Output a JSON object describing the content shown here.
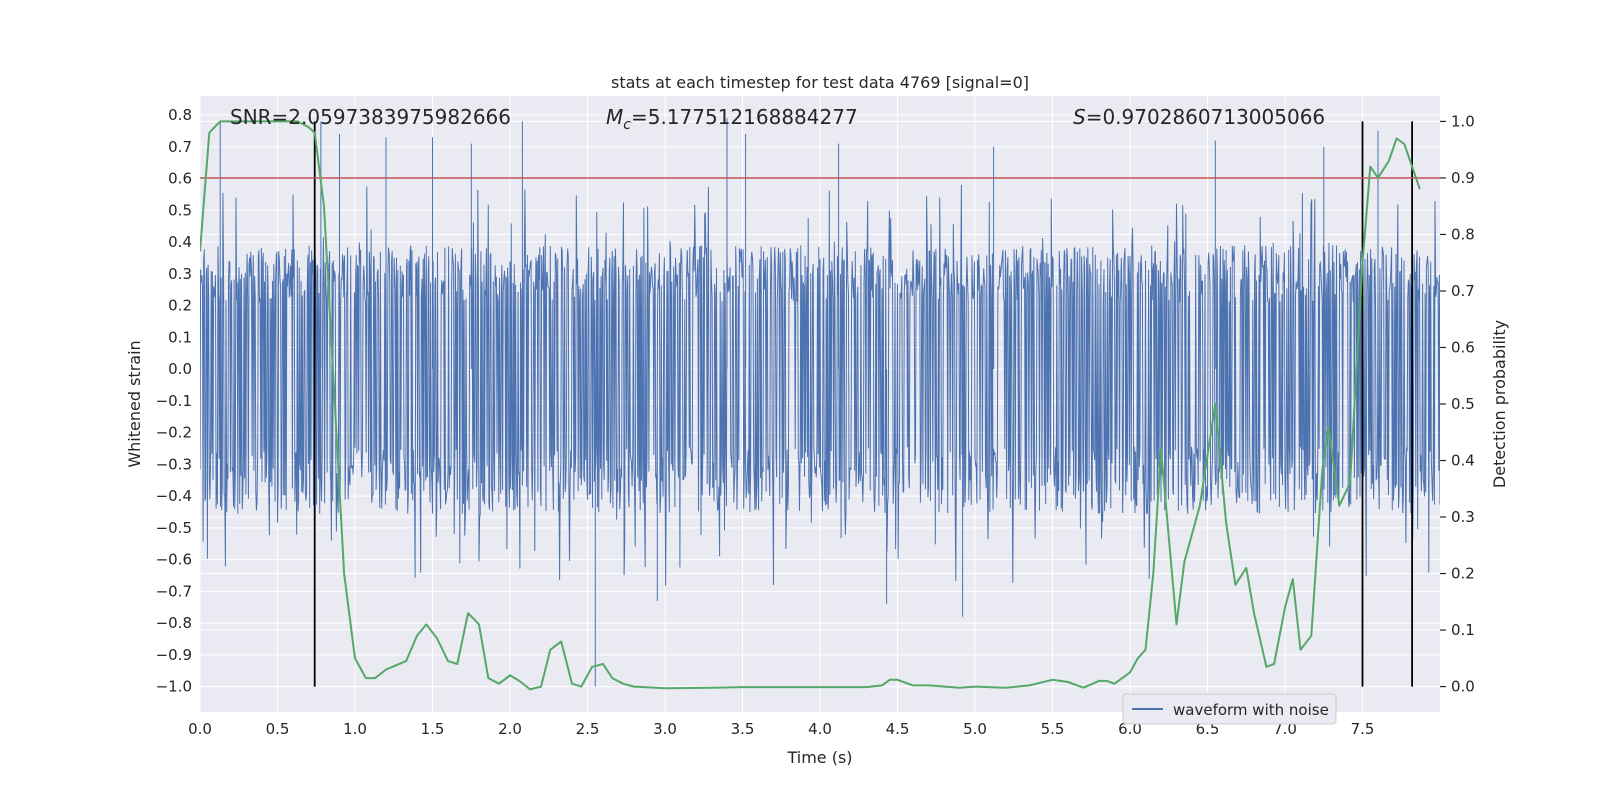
{
  "chart_data": {
    "type": "line",
    "title": "stats at each timestep for test data 4769 [signal=0]",
    "xlabel": "Time (s)",
    "ylabel_left": "Whitened strain",
    "ylabel_right": "Detection probability",
    "xlim": [
      0.0,
      8.0
    ],
    "ylim_left": [
      -1.08,
      0.86
    ],
    "ylim_right": [
      -0.045,
      1.045
    ],
    "x_ticks": [
      0.0,
      0.5,
      1.0,
      1.5,
      2.0,
      2.5,
      3.0,
      3.5,
      4.0,
      4.5,
      5.0,
      5.5,
      6.0,
      6.5,
      7.0,
      7.5
    ],
    "x_tick_labels": [
      "0.0",
      "0.5",
      "1.0",
      "1.5",
      "2.0",
      "2.5",
      "3.0",
      "3.5",
      "4.0",
      "4.5",
      "5.0",
      "5.5",
      "6.0",
      "6.5",
      "7.0",
      "7.5"
    ],
    "y_left_ticks": [
      0.8,
      0.7,
      0.6,
      0.5,
      0.4,
      0.3,
      0.2,
      0.1,
      0.0,
      -0.1,
      -0.2,
      -0.3,
      -0.4,
      -0.5,
      -0.6,
      -0.7,
      -0.8,
      -0.9,
      -1.0
    ],
    "y_left_tick_labels": [
      "0.8",
      "0.7",
      "0.6",
      "0.5",
      "0.4",
      "0.3",
      "0.2",
      "0.1",
      "0.0",
      "−0.1",
      "−0.2",
      "−0.3",
      "−0.4",
      "−0.5",
      "−0.6",
      "−0.7",
      "−0.8",
      "−0.9",
      "−1.0"
    ],
    "y_right_ticks": [
      1.0,
      0.9,
      0.8,
      0.7,
      0.6,
      0.5,
      0.4,
      0.3,
      0.2,
      0.1,
      0.0
    ],
    "y_right_tick_labels": [
      "1.0",
      "0.9",
      "0.8",
      "0.7",
      "0.6",
      "0.5",
      "0.4",
      "0.3",
      "0.2",
      "0.1",
      "0.0"
    ],
    "annotations": {
      "snr": "SNR=2.0597383975982666",
      "mc_symbol": "M",
      "mc_subscript": "c",
      "mc_value": "=5.177512168884277",
      "s_symbol": "S",
      "s_value": "=0.9702860713005066"
    },
    "threshold": {
      "value": 0.9,
      "axis": "right",
      "color": "#c44e52"
    },
    "vertical_lines": [
      0.74,
      7.5,
      7.82
    ],
    "waveform": {
      "name": "waveform with noise",
      "color": "#4c72b0",
      "sample_rate_hz": 1024,
      "envelope_typical": [
        -0.35,
        0.3
      ],
      "extreme_peaks_x": [
        0.13,
        0.78,
        0.9,
        1.2,
        1.5,
        1.75,
        2.08,
        2.55,
        2.95,
        3.4,
        3.52,
        4.12,
        4.43,
        4.92,
        5.12,
        6.55,
        7.25,
        7.6
      ],
      "extreme_peaks_y": [
        0.78,
        0.78,
        0.74,
        0.73,
        0.73,
        0.71,
        0.78,
        -1.0,
        -0.73,
        0.79,
        0.74,
        0.71,
        -0.74,
        -0.78,
        0.7,
        0.72,
        0.7,
        0.75
      ],
      "legend_location": "lower right"
    },
    "probability": {
      "name": "detection probability",
      "color": "#55a868",
      "x": [
        0.0,
        0.06,
        0.13,
        0.27,
        0.45,
        0.63,
        0.7,
        0.74,
        0.8,
        0.86,
        0.93,
        1.0,
        1.07,
        1.13,
        1.2,
        1.33,
        1.4,
        1.46,
        1.53,
        1.6,
        1.66,
        1.73,
        1.8,
        1.86,
        1.93,
        2.0,
        2.06,
        2.13,
        2.2,
        2.26,
        2.33,
        2.4,
        2.46,
        2.53,
        2.6,
        2.66,
        2.73,
        2.8,
        3.0,
        3.3,
        3.5,
        3.8,
        4.1,
        4.3,
        4.4,
        4.45,
        4.5,
        4.6,
        4.7,
        4.9,
        5.0,
        5.2,
        5.35,
        5.5,
        5.6,
        5.7,
        5.8,
        5.85,
        5.9,
        6.0,
        6.05,
        6.1,
        6.15,
        6.2,
        6.3,
        6.35,
        6.45,
        6.55,
        6.62,
        6.68,
        6.75,
        6.8,
        6.88,
        6.93,
        7.0,
        7.05,
        7.1,
        7.17,
        7.24,
        7.28,
        7.35,
        7.42,
        7.5,
        7.55,
        7.6,
        7.67,
        7.72,
        7.77,
        7.82,
        7.87
      ],
      "y": [
        0.77,
        0.98,
        1.0,
        1.0,
        1.0,
        1.0,
        0.99,
        0.98,
        0.85,
        0.55,
        0.2,
        0.05,
        0.015,
        0.015,
        0.03,
        0.045,
        0.09,
        0.11,
        0.085,
        0.045,
        0.04,
        0.13,
        0.11,
        0.015,
        0.005,
        0.02,
        0.01,
        -0.005,
        0.0,
        0.065,
        0.08,
        0.005,
        0.0,
        0.035,
        0.04,
        0.015,
        0.005,
        0.0,
        -0.003,
        -0.002,
        -0.001,
        -0.001,
        -0.001,
        -0.001,
        0.002,
        0.012,
        0.012,
        0.002,
        0.002,
        -0.002,
        0.0,
        -0.002,
        0.002,
        0.012,
        0.008,
        -0.002,
        0.01,
        0.01,
        0.005,
        0.025,
        0.05,
        0.065,
        0.2,
        0.42,
        0.11,
        0.22,
        0.32,
        0.5,
        0.29,
        0.18,
        0.21,
        0.13,
        0.035,
        0.04,
        0.14,
        0.19,
        0.065,
        0.09,
        0.38,
        0.46,
        0.32,
        0.36,
        0.75,
        0.92,
        0.9,
        0.93,
        0.97,
        0.96,
        0.92,
        0.88
      ]
    }
  }
}
